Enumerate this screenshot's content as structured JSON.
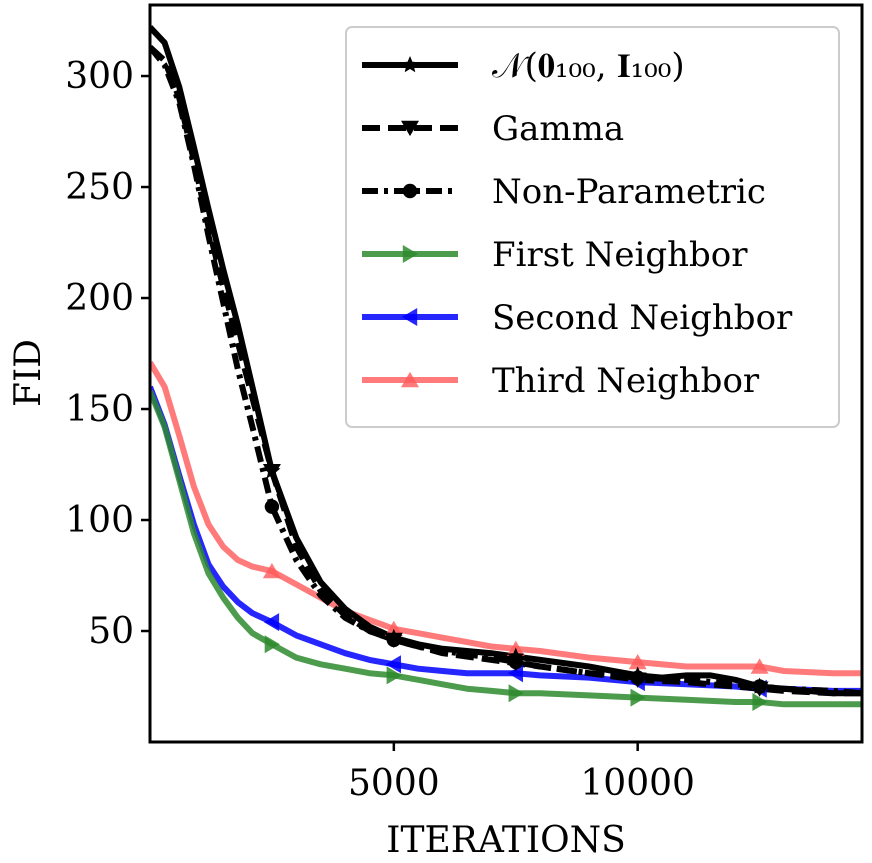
{
  "chart_data": {
    "type": "line",
    "title": "",
    "xlabel": "ITERATIONS",
    "ylabel": "FID",
    "xlim": [
      0,
      14600
    ],
    "ylim": [
      0,
      332
    ],
    "xticks": [
      5000,
      10000
    ],
    "yticks": [
      50,
      100,
      150,
      200,
      250,
      300
    ],
    "grid": false,
    "legend_position": "upper right",
    "series": [
      {
        "name": "𝒩(𝟎₁₀₀, 𝐈₁₀₀)",
        "color": "#000000",
        "linestyle": "solid",
        "marker": "star",
        "opacity": 1,
        "x": [
          0,
          300,
          600,
          900,
          1200,
          1500,
          1800,
          2100,
          2500,
          3000,
          3500,
          4000,
          4500,
          5000,
          5500,
          6000,
          7000,
          8000,
          9000,
          9500,
          10000,
          10500,
          11000,
          11500,
          12000,
          12500,
          13000,
          14000,
          14600
        ],
        "y": [
          322,
          315,
          295,
          268,
          240,
          213,
          188,
          160,
          122,
          92,
          72,
          60,
          52,
          47,
          44,
          42,
          40,
          37,
          34,
          32,
          30,
          29,
          30,
          30,
          28,
          25,
          24,
          22,
          22
        ],
        "marker_x": [
          2500,
          5000,
          7500,
          10000,
          12500
        ]
      },
      {
        "name": "Gamma",
        "color": "#000000",
        "linestyle": "dashed",
        "marker": "triangle-down",
        "opacity": 1,
        "x": [
          0,
          300,
          600,
          900,
          1200,
          1500,
          1800,
          2100,
          2500,
          3000,
          3500,
          4000,
          4500,
          5000,
          5500,
          6000,
          7000,
          8000,
          9000,
          10000,
          11000,
          12000,
          12500,
          13000,
          14000,
          14600
        ],
        "y": [
          313,
          307,
          290,
          262,
          232,
          205,
          180,
          155,
          122,
          88,
          68,
          57,
          50,
          46,
          43,
          40,
          37,
          34,
          31,
          28,
          27,
          25,
          24,
          23,
          22,
          22
        ]
      },
      {
        "name": "Non-Parametric",
        "color": "#000000",
        "linestyle": "dashdot",
        "marker": "circle",
        "opacity": 1,
        "x": [
          0,
          300,
          600,
          900,
          1200,
          1500,
          1800,
          2100,
          2500,
          3000,
          3500,
          4000,
          4500,
          5000,
          5500,
          6000,
          7000,
          8000,
          9000,
          10000,
          11000,
          12000,
          12500,
          13000,
          14000,
          14600
        ],
        "y": [
          313,
          305,
          288,
          260,
          228,
          198,
          168,
          142,
          106,
          82,
          66,
          56,
          50,
          46,
          43,
          41,
          38,
          34,
          31,
          29,
          28,
          26,
          25,
          24,
          23,
          22
        ]
      },
      {
        "name": "First Neighbor",
        "color": "#2e8b2e",
        "linestyle": "solid",
        "marker": "triangle-right",
        "opacity": 0.85,
        "x": [
          0,
          300,
          600,
          900,
          1200,
          1500,
          1800,
          2100,
          2500,
          3000,
          3500,
          4000,
          4500,
          5000,
          5500,
          6000,
          6500,
          7000,
          7500,
          8000,
          9000,
          10000,
          11000,
          12000,
          12500,
          13000,
          14000,
          14600
        ],
        "y": [
          158,
          142,
          118,
          94,
          76,
          65,
          56,
          49,
          44,
          38,
          35,
          33,
          31,
          30,
          28,
          26,
          24,
          23,
          22,
          22,
          21,
          20,
          19,
          18,
          18,
          17,
          17,
          17
        ]
      },
      {
        "name": "Second Neighbor",
        "color": "#0000ff",
        "linestyle": "solid",
        "marker": "triangle-left",
        "opacity": 0.85,
        "x": [
          0,
          300,
          600,
          900,
          1200,
          1500,
          1800,
          2100,
          2500,
          3000,
          3500,
          4000,
          4500,
          5000,
          5500,
          6000,
          6500,
          7000,
          7500,
          8000,
          9000,
          10000,
          11000,
          12000,
          12500,
          13000,
          14000,
          14600
        ],
        "y": [
          160,
          143,
          120,
          98,
          80,
          70,
          63,
          58,
          54,
          48,
          44,
          40,
          37,
          35,
          33,
          32,
          31,
          31,
          31,
          30,
          29,
          27,
          26,
          25,
          24,
          24,
          23,
          23
        ]
      },
      {
        "name": "Third Neighbor",
        "color": "#ff5a5a",
        "linestyle": "solid",
        "marker": "triangle-up",
        "opacity": 0.8,
        "x": [
          0,
          300,
          600,
          900,
          1200,
          1500,
          1800,
          2100,
          2500,
          3000,
          3500,
          4000,
          4500,
          5000,
          5500,
          6000,
          6500,
          7000,
          7500,
          8000,
          9000,
          10000,
          11000,
          12000,
          12500,
          13000,
          14000,
          14600
        ],
        "y": [
          171,
          160,
          138,
          115,
          98,
          88,
          82,
          79,
          77,
          71,
          65,
          59,
          55,
          51,
          49,
          47,
          45,
          43,
          42,
          41,
          38,
          36,
          34,
          34,
          34,
          32,
          31,
          31
        ]
      }
    ]
  }
}
